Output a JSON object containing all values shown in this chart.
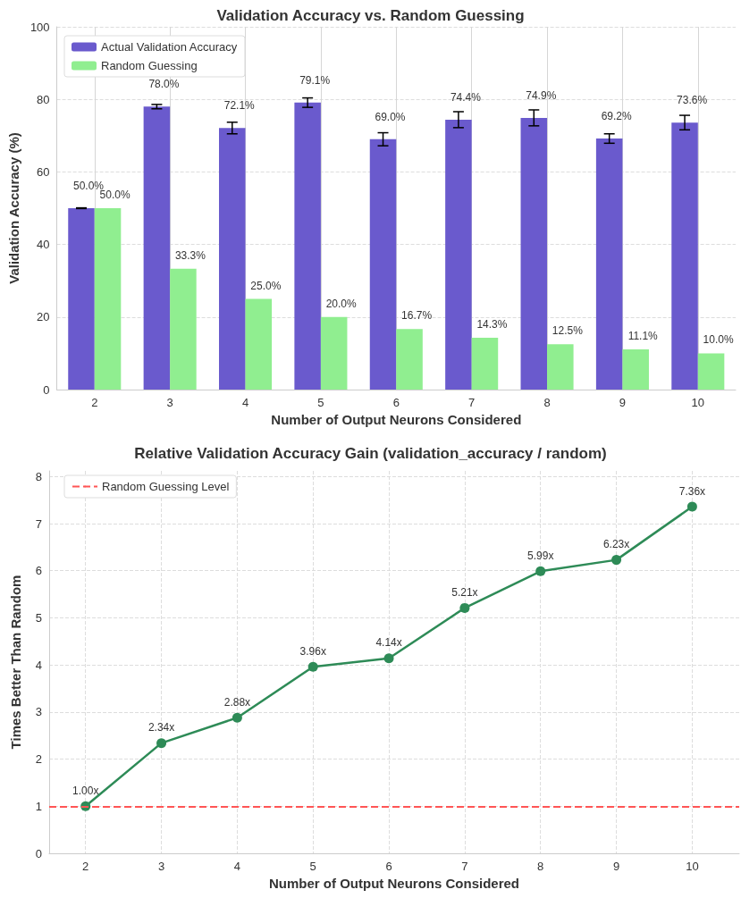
{
  "chart_data": [
    {
      "type": "bar",
      "title": "Validation Accuracy vs. Random Guessing",
      "xlabel": "Number of Output Neurons Considered",
      "ylabel": "Validation Accuracy (%)",
      "categories": [
        "2",
        "3",
        "4",
        "5",
        "6",
        "7",
        "8",
        "9",
        "10"
      ],
      "series": [
        {
          "name": "Actual Validation Accuracy",
          "color": "#6a5acd",
          "values": [
            50.0,
            78.0,
            72.1,
            79.1,
            69.0,
            74.4,
            74.9,
            69.2,
            73.6
          ],
          "errors": [
            0.1,
            0.6,
            1.6,
            1.3,
            1.8,
            2.2,
            2.2,
            1.3,
            2.0
          ],
          "value_labels": [
            "50.0%",
            "78.0%",
            "72.1%",
            "79.1%",
            "69.0%",
            "74.4%",
            "74.9%",
            "69.2%",
            "73.6%"
          ]
        },
        {
          "name": "Random Guessing",
          "color": "#90ee90",
          "values": [
            50.0,
            33.3,
            25.0,
            20.0,
            16.7,
            14.3,
            12.5,
            11.1,
            10.0
          ],
          "value_labels": [
            "50.0%",
            "33.3%",
            "25.0%",
            "20.0%",
            "16.7%",
            "14.3%",
            "12.5%",
            "11.1%",
            "10.0%"
          ]
        }
      ],
      "ylim": [
        0,
        100
      ],
      "yticks": [
        0,
        20,
        40,
        60,
        80,
        100
      ],
      "grid": true,
      "legend": "top left"
    },
    {
      "type": "line",
      "title": "Relative Validation Accuracy Gain (validation_accuracy / random)",
      "xlabel": "Number of Output Neurons Considered",
      "ylabel": "Times Better Than Random",
      "x": [
        2,
        3,
        4,
        5,
        6,
        7,
        8,
        9,
        10
      ],
      "series": [
        {
          "color": "#2e8b57",
          "values": [
            1.0,
            2.34,
            2.88,
            3.96,
            4.14,
            5.21,
            5.99,
            6.23,
            7.36
          ],
          "value_labels": [
            "1.00x",
            "2.34x",
            "2.88x",
            "3.96x",
            "4.14x",
            "5.21x",
            "5.99x",
            "6.23x",
            "7.36x"
          ]
        }
      ],
      "xlim": [
        1.52,
        10.62
      ],
      "xticks": [
        2,
        3,
        4,
        5,
        6,
        7,
        8,
        9,
        10
      ],
      "ylim": [
        0,
        8.12
      ],
      "yticks": [
        0,
        1,
        2,
        3,
        4,
        5,
        6,
        7,
        8
      ],
      "ref_lines": [
        {
          "axis": "y",
          "value": 1,
          "label": "Random Guessing Level",
          "color": "#ff5555",
          "line_style": "dashed"
        }
      ],
      "grid": true,
      "legend": "top left",
      "marker": "circle",
      "line_style": "solid"
    }
  ]
}
